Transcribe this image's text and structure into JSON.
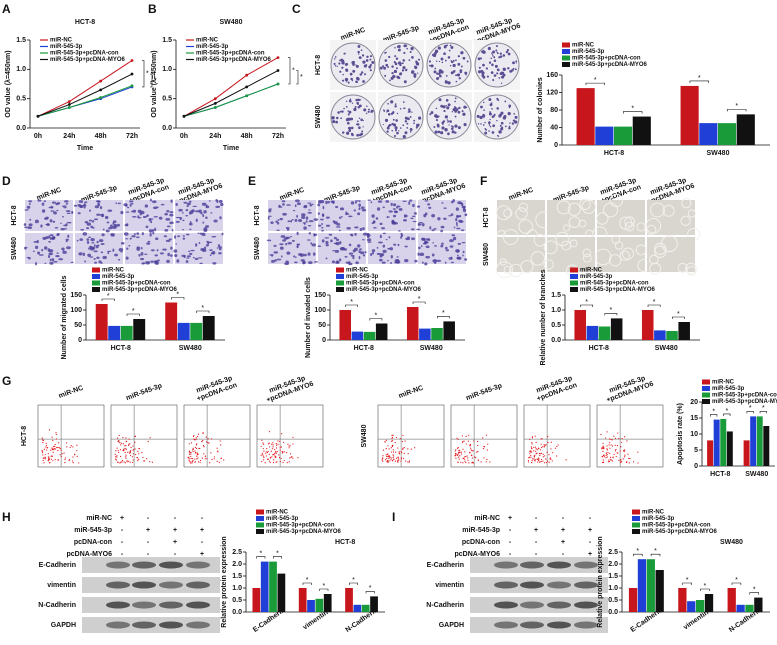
{
  "panel_labels": [
    "A",
    "B",
    "C",
    "D",
    "E",
    "F",
    "G",
    "H",
    "I"
  ],
  "image_panels": {
    "C": {
      "columns": [
        [
          "miR-NC"
        ],
        [
          "miR-545-3p"
        ],
        [
          "miR-545-3p",
          "+pcDNA-con"
        ],
        [
          "miR-545-3p",
          "+pcDNA-MYO6"
        ]
      ],
      "rows": [
        "HCT-8",
        "SW480"
      ]
    },
    "D": {
      "columns": [
        [
          "miR-NC"
        ],
        [
          "miR-545-3p"
        ],
        [
          "miR-545-3p",
          "+pcDNA-con"
        ],
        [
          "miR-545-3p",
          "+pcDNA-MYO6"
        ]
      ],
      "rows": [
        "HCT-8",
        "SW480"
      ]
    },
    "E": {
      "columns": [
        [
          "miR-NC"
        ],
        [
          "miR-545-3p"
        ],
        [
          "miR-545-3p",
          "+pcDNA-con"
        ],
        [
          "miR-545-3p",
          "+pcDNA-MYO6"
        ]
      ],
      "rows": [
        "HCT-8",
        "SW480"
      ]
    },
    "F": {
      "columns": [
        [
          "miR-NC"
        ],
        [
          "miR-545-3p"
        ],
        [
          "miR-545-3p",
          "+pcDNA-con"
        ],
        [
          "miR-545-3p",
          "+pcDNA-MYO6"
        ]
      ],
      "rows": [
        "HCT-8",
        "SW480"
      ]
    },
    "G": {
      "groups": [
        {
          "row": "HCT-8",
          "columns": [
            [
              "miR-NC"
            ],
            [
              "miR-545-3p"
            ],
            [
              "miR-545-3p",
              "+pcDNA-con"
            ],
            [
              "miR-545-3p",
              "+pcDNA-MYO6"
            ]
          ]
        },
        {
          "row": "SW480",
          "columns": [
            [
              "miR-NC"
            ],
            [
              "miR-545-3p"
            ],
            [
              "miR-545-3p",
              "+pcDNA-con"
            ],
            [
              "miR-545-3p",
              "+pcDNA-MYO6"
            ]
          ]
        }
      ]
    },
    "H": {
      "treatments": [
        {
          "name": "miR-NC",
          "signs": [
            "+",
            "-",
            "-",
            "-"
          ]
        },
        {
          "name": "miR-545-3p",
          "signs": [
            "-",
            "+",
            "+",
            "+"
          ]
        },
        {
          "name": "pcDNA-con",
          "signs": [
            "-",
            "-",
            "+",
            "-"
          ]
        },
        {
          "name": "pcDNA-MYO6",
          "signs": [
            "-",
            "-",
            "-",
            "+"
          ]
        }
      ],
      "proteins": [
        "E-Cadherin",
        "vimentin",
        "N-Cadherin",
        "GAPDH"
      ]
    },
    "I": {
      "treatments": [
        {
          "name": "miR-NC",
          "signs": [
            "+",
            "-",
            "-",
            "-"
          ]
        },
        {
          "name": "miR-545-3p",
          "signs": [
            "-",
            "+",
            "+",
            "+"
          ]
        },
        {
          "name": "pcDNA-con",
          "signs": [
            "-",
            "-",
            "+",
            "-"
          ]
        },
        {
          "name": "pcDNA-MYO6",
          "signs": [
            "-",
            "-",
            "-",
            "+"
          ]
        }
      ],
      "proteins": [
        "E-Cadherin",
        "vimentin",
        "N-Cadherin",
        "GAPDH"
      ]
    }
  },
  "chart_data": [
    {
      "type": "line",
      "title": "HCT-8",
      "categories": [
        "0h",
        "24h",
        "48h",
        "72h"
      ],
      "x_label": "Time",
      "y_label": "OD value (λ=450nm)",
      "ylim": [
        0,
        1.5
      ],
      "yticks": [
        {
          "value": 0,
          "label": "0.0"
        },
        0.5,
        {
          "value": 1,
          "label": "1.0"
        },
        1.5
      ],
      "significance_mark": "*",
      "series": [
        {
          "name": "miR-NC",
          "color": "#c8161d",
          "values": [
            0.2,
            0.45,
            0.8,
            1.15
          ]
        },
        {
          "name": "miR-545-3p",
          "color": "#1f3fd6",
          "values": [
            0.2,
            0.35,
            0.5,
            0.7
          ]
        },
        {
          "name": "miR-545-3p+pcDNA-con",
          "color": "#1a9b3a",
          "values": [
            0.2,
            0.35,
            0.52,
            0.72
          ]
        },
        {
          "name": "miR-545-3p+pcDNA-MYO6",
          "color": "#111111",
          "values": [
            0.2,
            0.4,
            0.65,
            0.92
          ]
        }
      ]
    },
    {
      "type": "line",
      "title": "SW480",
      "categories": [
        "0h",
        "24h",
        "48h",
        "72h"
      ],
      "x_label": "Time",
      "y_label": "OD value (λ=450nm)",
      "ylim": [
        0,
        1.5
      ],
      "yticks": [
        {
          "value": 0,
          "label": "0.0"
        },
        0.5,
        {
          "value": 1,
          "label": "1.0"
        },
        1.5
      ],
      "significance_mark": "*",
      "series": [
        {
          "name": "miR-NC",
          "color": "#c8161d",
          "values": [
            0.2,
            0.5,
            0.9,
            1.2
          ]
        },
        {
          "name": "miR-545-3p",
          "color": "#1f3fd6",
          "values": [
            0.2,
            0.35,
            0.55,
            0.75
          ]
        },
        {
          "name": "miR-545-3p+pcDNA-con",
          "color": "#1a9b3a",
          "values": [
            0.2,
            0.35,
            0.55,
            0.75
          ]
        },
        {
          "name": "miR-545-3p+pcDNA-MYO6",
          "color": "#111111",
          "values": [
            0.2,
            0.42,
            0.7,
            0.98
          ]
        }
      ]
    },
    {
      "type": "bar",
      "categories": [
        "HCT-8",
        "SW480"
      ],
      "y_label": "Number of colonies",
      "ylim": [
        0,
        160
      ],
      "yticks": [
        0,
        40,
        80,
        120,
        160
      ],
      "significance_mark": "*",
      "series": [
        {
          "name": "miR-NC",
          "color": "#c8161d",
          "values": [
            130,
            135
          ]
        },
        {
          "name": "miR-545-3p",
          "color": "#1f3fd6",
          "values": [
            42,
            50
          ]
        },
        {
          "name": "miR-545-3p+pcDNA-con",
          "color": "#1a9b3a",
          "values": [
            42,
            50
          ]
        },
        {
          "name": "miR-545-3p+pcDNA-MYO6",
          "color": "#111111",
          "values": [
            65,
            70
          ]
        }
      ]
    },
    {
      "type": "bar",
      "categories": [
        "HCT-8",
        "SW480"
      ],
      "y_label": "Number of migrated cells",
      "ylim": [
        0,
        150
      ],
      "yticks": [
        0,
        50,
        100,
        150
      ],
      "significance_mark": "*",
      "series": [
        {
          "name": "miR-NC",
          "color": "#c8161d",
          "values": [
            120,
            125
          ]
        },
        {
          "name": "miR-545-3p",
          "color": "#1f3fd6",
          "values": [
            47,
            57
          ]
        },
        {
          "name": "miR-545-3p+pcDNA-con",
          "color": "#1a9b3a",
          "values": [
            47,
            57
          ]
        },
        {
          "name": "miR-545-3p+pcDNA-MYO6",
          "color": "#111111",
          "values": [
            70,
            80
          ]
        }
      ]
    },
    {
      "type": "bar",
      "categories": [
        "HCT-8",
        "SW480"
      ],
      "y_label": "Number of invaded cells",
      "ylim": [
        0,
        150
      ],
      "yticks": [
        0,
        50,
        100,
        150
      ],
      "significance_mark": "*",
      "series": [
        {
          "name": "miR-NC",
          "color": "#c8161d",
          "values": [
            100,
            110
          ]
        },
        {
          "name": "miR-545-3p",
          "color": "#1f3fd6",
          "values": [
            28,
            38
          ]
        },
        {
          "name": "miR-545-3p+pcDNA-con",
          "color": "#1a9b3a",
          "values": [
            27,
            40
          ]
        },
        {
          "name": "miR-545-3p+pcDNA-MYO6",
          "color": "#111111",
          "values": [
            55,
            62
          ]
        }
      ]
    },
    {
      "type": "bar",
      "categories": [
        "HCT-8",
        "SW480"
      ],
      "y_label": "Relative number of branches",
      "ylim": [
        0,
        1.5
      ],
      "yticks": [
        {
          "value": 0,
          "label": "0.0"
        },
        0.5,
        {
          "value": 1,
          "label": "1.0"
        },
        1.5
      ],
      "significance_mark": "*",
      "series": [
        {
          "name": "miR-NC",
          "color": "#c8161d",
          "values": [
            1.0,
            1.0
          ]
        },
        {
          "name": "miR-545-3p",
          "color": "#1f3fd6",
          "values": [
            0.47,
            0.32
          ]
        },
        {
          "name": "miR-545-3p+pcDNA-con",
          "color": "#1a9b3a",
          "values": [
            0.45,
            0.3
          ]
        },
        {
          "name": "miR-545-3p+pcDNA-MYO6",
          "color": "#111111",
          "values": [
            0.72,
            0.6
          ]
        }
      ]
    },
    {
      "type": "bar",
      "categories": [
        "HCT-8",
        "SW480"
      ],
      "y_label": "Apoptosis rate (%)",
      "ylim": [
        0,
        20
      ],
      "yticks": [
        0,
        5,
        10,
        15,
        20
      ],
      "significance_mark": "*",
      "series": [
        {
          "name": "miR-NC",
          "color": "#c8161d",
          "values": [
            8,
            8
          ]
        },
        {
          "name": "miR-545-3p",
          "color": "#1f3fd6",
          "values": [
            14.5,
            15.5
          ]
        },
        {
          "name": "miR-545-3p+pcDNA-con",
          "color": "#1a9b3a",
          "values": [
            14.7,
            15.5
          ]
        },
        {
          "name": "miR-545-3p+pcDNA-MYO6",
          "color": "#111111",
          "values": [
            10.8,
            12.5
          ]
        }
      ]
    },
    {
      "type": "bar",
      "title": "HCT-8",
      "categories": [
        "E-Cadherin",
        "vimentin",
        "N-Cadherin"
      ],
      "y_label": "Relative protein expression",
      "ylim": [
        0,
        2.5
      ],
      "yticks": [
        {
          "value": 0,
          "label": "0.0"
        },
        0.5,
        {
          "value": 1,
          "label": "1.0"
        },
        1.5,
        {
          "value": 2,
          "label": "2.0"
        },
        2.5
      ],
      "significance_mark": "*",
      "series": [
        {
          "name": "miR-NC",
          "color": "#c8161d",
          "values": [
            1.0,
            1.0,
            1.0
          ]
        },
        {
          "name": "miR-545-3p",
          "color": "#1f3fd6",
          "values": [
            2.1,
            0.5,
            0.3
          ]
        },
        {
          "name": "miR-545-3p+pcDNA-con",
          "color": "#1a9b3a",
          "values": [
            2.1,
            0.55,
            0.3
          ]
        },
        {
          "name": "miR-545-3p+pcDNA-MYO6",
          "color": "#111111",
          "values": [
            1.6,
            0.75,
            0.65
          ]
        }
      ]
    },
    {
      "type": "bar",
      "title": "SW480",
      "categories": [
        "E-Cadherin",
        "vimentin",
        "N-Cadherin"
      ],
      "y_label": "Relative protein expression",
      "ylim": [
        0,
        2.5
      ],
      "yticks": [
        {
          "value": 0,
          "label": "0.0"
        },
        0.5,
        {
          "value": 1,
          "label": "1.0"
        },
        1.5,
        {
          "value": 2,
          "label": "2.0"
        },
        2.5
      ],
      "significance_mark": "*",
      "series": [
        {
          "name": "miR-NC",
          "color": "#c8161d",
          "values": [
            1.0,
            1.0,
            1.0
          ]
        },
        {
          "name": "miR-545-3p",
          "color": "#1f3fd6",
          "values": [
            2.2,
            0.45,
            0.3
          ]
        },
        {
          "name": "miR-545-3p+pcDNA-con",
          "color": "#1a9b3a",
          "values": [
            2.2,
            0.5,
            0.3
          ]
        },
        {
          "name": "miR-545-3p+pcDNA-MYO6",
          "color": "#111111",
          "values": [
            1.75,
            0.75,
            0.6
          ]
        }
      ]
    }
  ]
}
